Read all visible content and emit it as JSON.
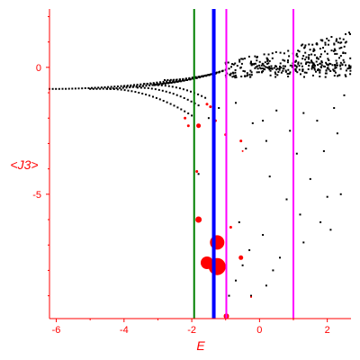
{
  "chart_data": {
    "type": "scatter",
    "xlabel": "E",
    "ylabel": "<J3>",
    "xlim": [
      -6.2,
      2.7
    ],
    "ylim": [
      -9.9,
      2.3
    ],
    "xticks": [
      -6,
      -4,
      -2,
      0,
      2
    ],
    "xtick_labels": [
      "-6",
      "-4",
      "-2",
      "0",
      "2"
    ],
    "yticks": [
      0,
      -5
    ],
    "ytick_labels": [
      "0",
      "-5"
    ],
    "grid": false,
    "colors": {
      "axis": "#ff0000",
      "black_points": "#000000",
      "red_points": "#ff0000",
      "green_line": "#008000",
      "blue_line": "#0000ff",
      "magenta_line": "#ff00ff"
    },
    "vertical_lines": [
      {
        "x": -1.93,
        "color": "#008000",
        "width": 2
      },
      {
        "x": -1.35,
        "color": "#0000ff",
        "width": 4
      },
      {
        "x": -0.98,
        "color": "#ff00ff",
        "width": 2
      },
      {
        "x": 1.0,
        "color": "#ff00ff",
        "width": 2
      }
    ],
    "black_branches": [
      {
        "x_start": -6.2,
        "x_end": -1.3,
        "y_start": -0.85,
        "y_end": -0.25,
        "n": 52
      },
      {
        "x_start": -5.0,
        "x_end": -1.2,
        "y_start": -0.85,
        "y_end": -0.2,
        "n": 40
      },
      {
        "x_start": -4.0,
        "x_end": -1.1,
        "y_start": -0.75,
        "y_end": -0.15,
        "n": 32
      },
      {
        "x_start": -3.4,
        "x_end": -1.0,
        "y_start": -0.65,
        "y_end": -0.1,
        "n": 26
      },
      {
        "x_start": -2.8,
        "x_end": -0.9,
        "y_start": -0.5,
        "y_end": -0.05,
        "n": 22
      }
    ],
    "black_tails": [
      {
        "x_start": -4.5,
        "x_end": -2.0,
        "y_start": -0.85,
        "y_end": -1.9,
        "n": 25
      },
      {
        "x_start": -3.6,
        "x_end": -1.8,
        "y_start": -0.8,
        "y_end": -1.5,
        "n": 18
      },
      {
        "x_start": -3.1,
        "x_end": -1.6,
        "y_start": -0.7,
        "y_end": -1.2,
        "n": 15
      }
    ],
    "black_cloud": {
      "x_start": -1.0,
      "x_end": 2.7,
      "y_start": -0.4,
      "y_end": 1.4,
      "n": 260,
      "seed": 7
    },
    "black_sparse": [
      [
        -1.5,
        -2.0
      ],
      [
        -1.2,
        -1.6
      ],
      [
        -0.7,
        -1.4
      ],
      [
        -0.2,
        -2.2
      ],
      [
        0.1,
        -2.1
      ],
      [
        0.5,
        -1.7
      ],
      [
        0.9,
        -2.5
      ],
      [
        1.3,
        -1.8
      ],
      [
        1.7,
        -2.1
      ],
      [
        2.2,
        -1.6
      ],
      [
        2.5,
        -1.1
      ],
      [
        -0.4,
        -3.2
      ],
      [
        0.2,
        -2.9
      ],
      [
        1.1,
        -3.4
      ],
      [
        1.9,
        -3.3
      ],
      [
        2.3,
        -2.6
      ],
      [
        0.3,
        -4.3
      ],
      [
        1.5,
        -4.4
      ],
      [
        0.8,
        -5.2
      ],
      [
        2.0,
        -5.1
      ],
      [
        2.4,
        -5.0
      ],
      [
        1.2,
        -5.8
      ],
      [
        1.8,
        -6.1
      ],
      [
        -0.6,
        -6.1
      ],
      [
        0.1,
        -6.6
      ],
      [
        1.3,
        -6.9
      ],
      [
        2.1,
        -6.4
      ],
      [
        -0.3,
        -7.2
      ],
      [
        0.6,
        -7.5
      ],
      [
        -0.5,
        -7.8
      ],
      [
        0.4,
        -8.0
      ],
      [
        -0.7,
        -8.4
      ],
      [
        0.2,
        -8.6
      ],
      [
        -0.9,
        -9.0
      ],
      [
        -0.25,
        -9.0
      ],
      [
        -2.1,
        -2.3
      ],
      [
        -1.8,
        -4.2
      ]
    ],
    "red_points": [
      [
        -2.2,
        -2.0,
        1.5
      ],
      [
        -2.1,
        -2.3,
        1.5
      ],
      [
        -1.8,
        -2.3,
        2.5
      ],
      [
        -1.55,
        -1.45,
        1.5
      ],
      [
        -1.45,
        -1.55,
        1.5
      ],
      [
        -1.3,
        -2.1,
        1.5
      ],
      [
        -1.0,
        -2.65,
        1.5
      ],
      [
        -1.85,
        -4.1,
        1.5
      ],
      [
        -0.55,
        -2.9,
        1.5
      ],
      [
        -0.5,
        -3.3,
        1.0
      ],
      [
        -1.8,
        -6.0,
        3.5
      ],
      [
        -0.85,
        -6.3,
        1.5
      ],
      [
        -1.25,
        -6.9,
        8.0
      ],
      [
        -1.55,
        -7.7,
        7.0
      ],
      [
        -1.25,
        -7.85,
        9.5
      ],
      [
        -0.55,
        -7.5,
        2.5
      ],
      [
        -0.25,
        -9.05,
        1.0
      ],
      [
        -0.98,
        -9.8,
        3.0
      ]
    ]
  }
}
